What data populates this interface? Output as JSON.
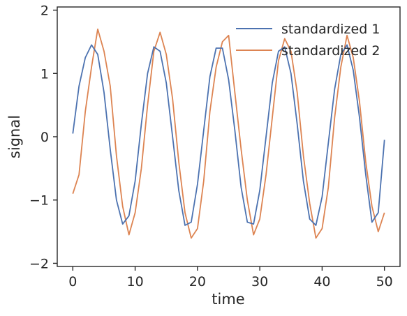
{
  "chart_data": {
    "type": "line",
    "xlabel": "time",
    "ylabel": "signal",
    "xlim": [
      -2.5,
      52.5
    ],
    "ylim": [
      -2.05,
      2.05
    ],
    "xticks": [
      0,
      10,
      20,
      30,
      40,
      50
    ],
    "xtick_labels": [
      "0",
      "10",
      "20",
      "30",
      "40",
      "50"
    ],
    "yticks": [
      -2,
      -1,
      0,
      1,
      2
    ],
    "ytick_labels": [
      "−2",
      "−1",
      "0",
      "1",
      "2"
    ],
    "grid": false,
    "legend_position": "upper-right",
    "series": [
      {
        "name": "standardized 1",
        "color": "#4c72b0",
        "x": [
          0,
          1,
          2,
          3,
          4,
          5,
          6,
          7,
          8,
          9,
          10,
          11,
          12,
          13,
          14,
          15,
          16,
          17,
          18,
          19,
          20,
          21,
          22,
          23,
          24,
          25,
          26,
          27,
          28,
          29,
          30,
          31,
          32,
          33,
          34,
          35,
          36,
          37,
          38,
          39,
          40,
          41,
          42,
          43,
          44,
          45,
          46,
          47,
          48,
          49,
          50
        ],
        "y": [
          0.05,
          0.8,
          1.25,
          1.45,
          1.3,
          0.7,
          -0.2,
          -1.0,
          -1.38,
          -1.25,
          -0.7,
          0.2,
          1.0,
          1.42,
          1.35,
          0.85,
          0.0,
          -0.85,
          -1.4,
          -1.35,
          -0.75,
          0.1,
          0.95,
          1.4,
          1.4,
          0.9,
          0.1,
          -0.8,
          -1.35,
          -1.38,
          -0.85,
          0.0,
          0.85,
          1.35,
          1.42,
          1.0,
          0.2,
          -0.7,
          -1.3,
          -1.4,
          -0.95,
          -0.1,
          0.75,
          1.3,
          1.45,
          1.05,
          0.3,
          -0.6,
          -1.35,
          -1.2,
          -0.05
        ]
      },
      {
        "name": "standardized 2",
        "color": "#dd8452",
        "x": [
          0,
          1,
          2,
          3,
          4,
          5,
          6,
          7,
          8,
          9,
          10,
          11,
          12,
          13,
          14,
          15,
          16,
          17,
          18,
          19,
          20,
          21,
          22,
          23,
          24,
          25,
          26,
          27,
          28,
          29,
          30,
          31,
          32,
          33,
          34,
          35,
          36,
          37,
          38,
          39,
          40,
          41,
          42,
          43,
          44,
          45,
          46,
          47,
          48,
          49,
          50
        ],
        "y": [
          -0.9,
          -0.6,
          0.4,
          1.1,
          1.7,
          1.35,
          0.8,
          -0.3,
          -1.1,
          -1.55,
          -1.2,
          -0.5,
          0.5,
          1.35,
          1.65,
          1.3,
          0.6,
          -0.4,
          -1.2,
          -1.6,
          -1.45,
          -0.7,
          0.4,
          1.1,
          1.5,
          1.6,
          0.7,
          -0.2,
          -1.0,
          -1.55,
          -1.3,
          -0.6,
          0.3,
          1.2,
          1.55,
          1.35,
          0.7,
          -0.3,
          -1.05,
          -1.6,
          -1.45,
          -0.8,
          0.3,
          1.1,
          1.6,
          1.25,
          0.55,
          -0.4,
          -1.1,
          -1.5,
          -1.2
        ]
      }
    ]
  }
}
